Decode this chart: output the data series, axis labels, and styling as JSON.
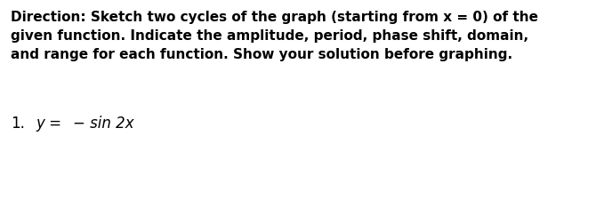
{
  "background_color": "#ffffff",
  "direction_lines": [
    "Direction: Sketch two cycles of the graph (starting from x = 0) of the",
    "given function. Indicate the amplitude, period, phase shift, domain,",
    "and range for each function. Show your solution before graphing."
  ],
  "item_number": "1.",
  "item_label_normal": "y =",
  "item_formula": "− sin 2x",
  "text_color": "#000000",
  "direction_fontsize": 11.0,
  "item_fontsize": 12.0,
  "figwidth": 6.79,
  "figheight": 2.34,
  "dpi": 100
}
